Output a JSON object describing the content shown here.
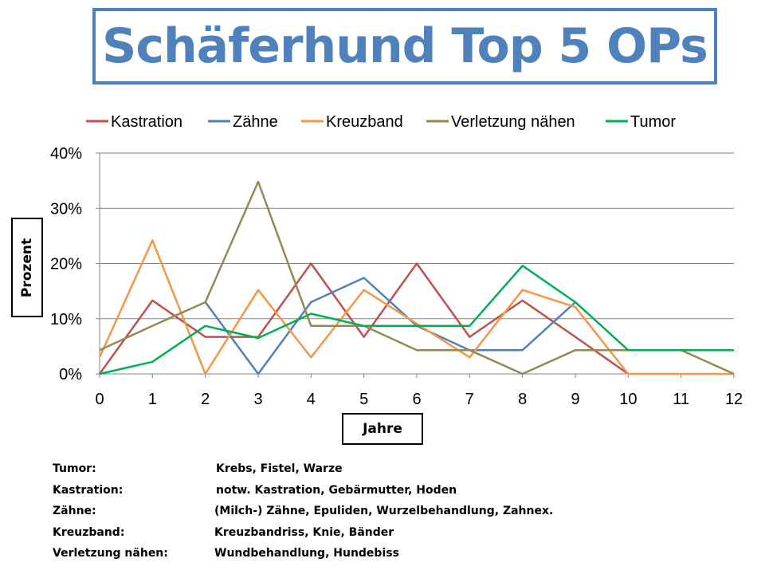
{
  "title": "Schäferhund Top 5 OPs",
  "chart_data": {
    "type": "line",
    "title": "Schäferhund Top 5 OPs",
    "xlabel": "Jahre",
    "ylabel": "Prozent",
    "x": [
      0,
      1,
      2,
      3,
      4,
      5,
      6,
      7,
      8,
      9,
      10,
      11,
      12
    ],
    "x_tick_labels": [
      "0",
      "1",
      "2",
      "3",
      "4",
      "5",
      "6",
      "7",
      "8",
      "9",
      "10",
      "11",
      "12"
    ],
    "y_tick_labels": [
      "0%",
      "10%",
      "20%",
      "30%",
      "40%"
    ],
    "ylim": [
      0,
      40
    ],
    "y_unit": "%",
    "grid": "horizontal",
    "legend_position": "top",
    "series": [
      {
        "name": "Kastration",
        "color": "#c0504d",
        "values": [
          0,
          13.3,
          6.7,
          6.7,
          20,
          6.7,
          20,
          6.7,
          13.3,
          6.7,
          0,
          null,
          null
        ]
      },
      {
        "name": "Zähne",
        "color": "#4f81bd",
        "values": [
          null,
          null,
          13,
          0,
          13,
          17.4,
          8.7,
          4.3,
          4.3,
          13,
          null,
          null,
          null
        ]
      },
      {
        "name": "Kreuzband",
        "color": "#f79646",
        "values": [
          3,
          24.2,
          0,
          15.2,
          3,
          15.2,
          9.1,
          3,
          15.2,
          12.1,
          0,
          0,
          0
        ]
      },
      {
        "name": "Verletzung nähen",
        "color": "#948a54",
        "values": [
          4.3,
          8.7,
          13,
          34.8,
          8.7,
          8.7,
          4.3,
          4.3,
          0,
          4.3,
          4.3,
          4.3,
          0
        ]
      },
      {
        "name": "Tumor",
        "color": "#00b050",
        "values": [
          0,
          2.2,
          8.7,
          6.5,
          10.9,
          8.7,
          8.7,
          8.7,
          19.6,
          13,
          4.3,
          4.3,
          4.3
        ]
      }
    ]
  },
  "notes": [
    {
      "term": "Tumor:",
      "definition": "Krebs, Fistel, Warze"
    },
    {
      "term": "Kastration:",
      "definition": "notw. Kastration, Gebärmutter, Hoden"
    },
    {
      "term": "Zähne:",
      "definition": "(Milch-) Zähne, Epuliden, Wurzelbehandlung, Zahnex."
    },
    {
      "term": "Kreuzband:",
      "definition": "Kreuzbandriss, Knie, Bänder"
    },
    {
      "term": "Verletzung nähen:",
      "definition": "Wundbehandlung, Hundebiss"
    }
  ]
}
